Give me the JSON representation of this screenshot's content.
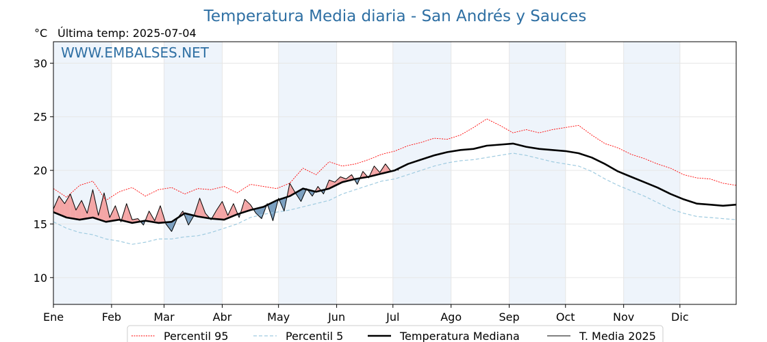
{
  "page": {
    "title": "Temperatura Media diaria - San Andrés y Sauces",
    "unit_label": "°C",
    "last_temp_label": "Última temp: 2025-07-04",
    "watermark": "WWW.EMBALSES.NET"
  },
  "colors": {
    "p95": "#ff0000",
    "p5": "#9fcbe0",
    "median": "#000000",
    "current": "#000000",
    "above_fill": "#f4a6a6",
    "below_fill": "#7a9fc0",
    "band": "#eef4fb",
    "title": "#2e6fa3"
  },
  "chart_data": {
    "type": "line",
    "x_unit": "day_of_year",
    "xlim": [
      1,
      365
    ],
    "ylim": [
      7.5,
      32
    ],
    "grid": true,
    "legend_position": "bottom-center",
    "y_ticks": [
      10,
      15,
      20,
      25,
      30
    ],
    "month_ticks": [
      {
        "label": "Ene",
        "day": 1
      },
      {
        "label": "Feb",
        "day": 32
      },
      {
        "label": "Mar",
        "day": 60
      },
      {
        "label": "Abr",
        "day": 91
      },
      {
        "label": "May",
        "day": 121
      },
      {
        "label": "Jun",
        "day": 152
      },
      {
        "label": "Jul",
        "day": 182
      },
      {
        "label": "Ago",
        "day": 213
      },
      {
        "label": "Sep",
        "day": 244
      },
      {
        "label": "Oct",
        "day": 274
      },
      {
        "label": "Nov",
        "day": 305
      },
      {
        "label": "Dic",
        "day": 335
      }
    ],
    "shaded_months": [
      [
        1,
        32
      ],
      [
        60,
        91
      ],
      [
        121,
        152
      ],
      [
        182,
        213
      ],
      [
        244,
        274
      ],
      [
        305,
        335
      ]
    ],
    "series": [
      {
        "name": "Percentil 95",
        "style": "dotted-red",
        "x": [
          1,
          8,
          15,
          22,
          29,
          36,
          43,
          50,
          57,
          64,
          71,
          78,
          85,
          92,
          99,
          106,
          113,
          120,
          127,
          134,
          141,
          148,
          155,
          162,
          169,
          176,
          183,
          190,
          197,
          204,
          211,
          218,
          225,
          232,
          239,
          246,
          253,
          260,
          267,
          274,
          281,
          288,
          295,
          302,
          309,
          316,
          323,
          330,
          337,
          344,
          351,
          358,
          365
        ],
        "y": [
          18.3,
          17.5,
          18.6,
          19.0,
          17.2,
          18.0,
          18.4,
          17.6,
          18.2,
          18.4,
          17.8,
          18.3,
          18.2,
          18.5,
          17.9,
          18.7,
          18.5,
          18.3,
          18.8,
          20.2,
          19.6,
          20.8,
          20.4,
          20.6,
          21.0,
          21.5,
          21.8,
          22.3,
          22.6,
          23.0,
          22.9,
          23.3,
          24.0,
          24.8,
          24.2,
          23.5,
          23.8,
          23.5,
          23.8,
          24.0,
          24.2,
          23.3,
          22.5,
          22.1,
          21.5,
          21.1,
          20.6,
          20.2,
          19.6,
          19.3,
          19.2,
          18.8,
          18.6
        ]
      },
      {
        "name": "Percentil 5",
        "style": "dashed-lightblue",
        "x": [
          1,
          8,
          15,
          22,
          29,
          36,
          43,
          50,
          57,
          64,
          71,
          78,
          85,
          92,
          99,
          106,
          113,
          120,
          127,
          134,
          141,
          148,
          155,
          162,
          169,
          176,
          183,
          190,
          197,
          204,
          211,
          218,
          225,
          232,
          239,
          246,
          253,
          260,
          267,
          274,
          281,
          288,
          295,
          302,
          309,
          316,
          323,
          330,
          337,
          344,
          351,
          358,
          365
        ],
        "y": [
          15.2,
          14.6,
          14.2,
          14.0,
          13.6,
          13.4,
          13.1,
          13.3,
          13.6,
          13.6,
          13.8,
          13.9,
          14.2,
          14.6,
          15.0,
          15.6,
          15.9,
          16.1,
          16.3,
          16.6,
          16.9,
          17.2,
          17.8,
          18.2,
          18.6,
          19.0,
          19.2,
          19.6,
          20.0,
          20.4,
          20.7,
          20.9,
          21.0,
          21.2,
          21.4,
          21.6,
          21.4,
          21.1,
          20.8,
          20.6,
          20.4,
          19.9,
          19.2,
          18.6,
          18.1,
          17.6,
          17.0,
          16.4,
          16.0,
          15.7,
          15.6,
          15.5,
          15.4
        ]
      },
      {
        "name": "Temperatura Mediana",
        "style": "thick-black",
        "x": [
          1,
          8,
          15,
          22,
          29,
          36,
          43,
          50,
          57,
          64,
          71,
          78,
          85,
          92,
          99,
          106,
          113,
          120,
          127,
          134,
          141,
          148,
          155,
          162,
          169,
          176,
          183,
          190,
          197,
          204,
          211,
          218,
          225,
          232,
          239,
          246,
          253,
          260,
          267,
          274,
          281,
          288,
          295,
          302,
          309,
          316,
          323,
          330,
          337,
          344,
          351,
          358,
          365
        ],
        "y": [
          16.1,
          15.6,
          15.4,
          15.6,
          15.2,
          15.4,
          15.1,
          15.3,
          15.1,
          15.2,
          16.0,
          15.7,
          15.5,
          15.4,
          15.9,
          16.3,
          16.6,
          17.2,
          17.6,
          18.3,
          18.0,
          18.3,
          18.9,
          19.2,
          19.4,
          19.7,
          20.0,
          20.6,
          21.0,
          21.4,
          21.7,
          21.9,
          22.0,
          22.3,
          22.4,
          22.5,
          22.2,
          22.0,
          21.9,
          21.8,
          21.6,
          21.2,
          20.6,
          19.9,
          19.4,
          18.9,
          18.4,
          17.8,
          17.3,
          16.9,
          16.8,
          16.7,
          16.8
        ]
      },
      {
        "name": "T. Media 2025",
        "style": "thin-black",
        "x": [
          1,
          4,
          7,
          10,
          13,
          16,
          19,
          22,
          25,
          28,
          31,
          34,
          37,
          40,
          43,
          46,
          49,
          52,
          55,
          58,
          61,
          64,
          67,
          70,
          73,
          76,
          79,
          82,
          85,
          88,
          91,
          94,
          97,
          100,
          103,
          106,
          109,
          112,
          115,
          118,
          121,
          124,
          127,
          130,
          133,
          136,
          139,
          142,
          145,
          148,
          151,
          154,
          157,
          160,
          163,
          166,
          169,
          172,
          175,
          178,
          181,
          184,
          185
        ],
        "y": [
          16.4,
          17.6,
          16.9,
          17.8,
          16.3,
          17.2,
          16.0,
          18.2,
          15.8,
          17.9,
          15.6,
          16.7,
          15.2,
          16.9,
          15.4,
          15.5,
          14.9,
          16.2,
          15.3,
          16.7,
          15.0,
          14.3,
          15.5,
          16.2,
          14.9,
          15.8,
          17.4,
          16.0,
          15.4,
          16.3,
          17.1,
          15.8,
          16.9,
          15.6,
          17.3,
          16.8,
          16.0,
          15.5,
          16.9,
          15.3,
          17.4,
          16.2,
          18.8,
          17.9,
          17.1,
          18.3,
          17.6,
          18.5,
          17.8,
          19.1,
          18.9,
          19.4,
          19.2,
          19.6,
          18.7,
          19.9,
          19.3,
          20.4,
          19.8,
          20.6,
          19.9,
          20.1,
          20.0
        ]
      }
    ]
  }
}
